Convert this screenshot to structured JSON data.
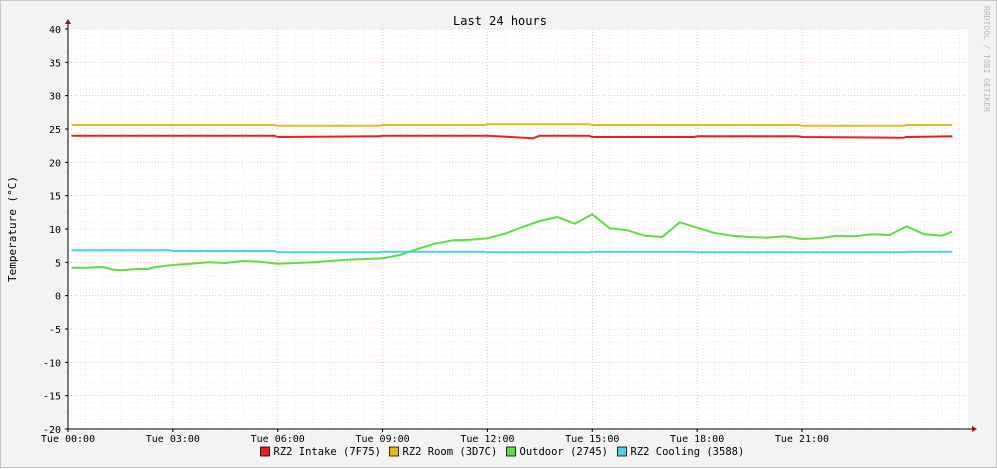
{
  "chart_data": {
    "type": "line",
    "title": "Last 24 hours",
    "ylabel": "Temperature (°C)",
    "watermark": "RRDTOOL / TOBI OETIKER",
    "ylim": [
      -20,
      40
    ],
    "xlim_hours": [
      0,
      25.75
    ],
    "yticks": [
      40,
      35,
      30,
      25,
      20,
      15,
      10,
      5,
      0,
      -5,
      -10,
      -15,
      -20
    ],
    "xticks": [
      {
        "hour": 0,
        "label": "Tue 00:00"
      },
      {
        "hour": 3,
        "label": "Tue 03:00"
      },
      {
        "hour": 6,
        "label": "Tue 06:00"
      },
      {
        "hour": 9,
        "label": "Tue 09:00"
      },
      {
        "hour": 12,
        "label": "Tue 12:00"
      },
      {
        "hour": 15,
        "label": "Tue 15:00"
      },
      {
        "hour": 18,
        "label": "Tue 18:00"
      },
      {
        "hour": 21,
        "label": "Tue 21:00"
      }
    ],
    "grid": true,
    "legend_position": "bottom",
    "colors": {
      "background": "#f3f3f3",
      "canvas": "#ffffff",
      "grid_major": "#e8a3a3",
      "grid_minor": "#d8d8d8",
      "axis": "#000000",
      "arrow": "#8b1a1a"
    },
    "series": [
      {
        "name": "RZ2 Intake (7F75)",
        "color": "#ee1d1d",
        "x": [
          0.1,
          2.9,
          3.0,
          5.9,
          6.0,
          8.9,
          9.0,
          11.9,
          12.0,
          13.3,
          13.5,
          14.9,
          15.0,
          17.9,
          18.0,
          20.9,
          21.0,
          23.9,
          24.0,
          25.3
        ],
        "y": [
          24.0,
          24.0,
          24.0,
          24.0,
          23.8,
          23.9,
          24.0,
          24.0,
          24.0,
          23.6,
          24.0,
          24.0,
          23.8,
          23.8,
          23.9,
          23.9,
          23.8,
          23.7,
          23.8,
          23.9
        ]
      },
      {
        "name": "RZ2 Room (3D7C)",
        "color": "#e8b719",
        "x": [
          0.1,
          2.9,
          3.0,
          5.9,
          6.0,
          8.9,
          9.0,
          11.9,
          12.0,
          14.9,
          15.0,
          17.9,
          18.0,
          20.9,
          21.0,
          23.9,
          24.0,
          25.3
        ],
        "y": [
          25.6,
          25.6,
          25.6,
          25.6,
          25.5,
          25.5,
          25.6,
          25.6,
          25.7,
          25.7,
          25.6,
          25.6,
          25.6,
          25.6,
          25.5,
          25.5,
          25.6,
          25.6
        ]
      },
      {
        "name": "Outdoor (2745)",
        "color": "#5bdf45",
        "x": [
          0.1,
          0.5,
          1.0,
          1.3,
          1.5,
          2.0,
          2.3,
          2.5,
          3.0,
          3.5,
          4.0,
          4.5,
          5.0,
          5.5,
          6.0,
          6.5,
          7.0,
          7.5,
          8.0,
          8.5,
          9.0,
          9.5,
          10.0,
          10.5,
          11.0,
          11.5,
          12.0,
          12.5,
          13.0,
          13.5,
          14.0,
          14.5,
          15.0,
          15.5,
          16.0,
          16.5,
          17.0,
          17.5,
          18.0,
          18.5,
          19.0,
          19.5,
          20.0,
          20.5,
          21.0,
          21.5,
          22.0,
          22.5,
          23.0,
          23.5,
          24.0,
          24.5,
          25.0,
          25.3
        ],
        "y": [
          4.2,
          4.2,
          4.3,
          3.9,
          3.8,
          4.0,
          4.0,
          4.3,
          4.6,
          4.8,
          5.0,
          4.9,
          5.2,
          5.1,
          4.8,
          4.9,
          5.0,
          5.2,
          5.4,
          5.5,
          5.6,
          6.1,
          7.0,
          7.8,
          8.3,
          8.4,
          8.6,
          9.3,
          10.3,
          11.2,
          11.8,
          10.8,
          12.2,
          10.1,
          9.8,
          9.0,
          8.8,
          11.0,
          10.2,
          9.4,
          9.0,
          8.8,
          8.7,
          8.9,
          8.5,
          8.6,
          9.0,
          8.9,
          9.2,
          9.1,
          10.4,
          9.2,
          9.0,
          9.6
        ]
      },
      {
        "name": "RZ2 Cooling (3588)",
        "color": "#4fd1e3",
        "x": [
          0.1,
          2.9,
          3.0,
          5.9,
          6.0,
          8.9,
          9.0,
          11.9,
          12.0,
          14.9,
          15.0,
          17.9,
          18.0,
          20.9,
          21.0,
          23.9,
          24.0,
          25.3
        ],
        "y": [
          6.8,
          6.8,
          6.7,
          6.7,
          6.5,
          6.5,
          6.6,
          6.6,
          6.5,
          6.5,
          6.6,
          6.6,
          6.5,
          6.5,
          6.5,
          6.5,
          6.6,
          6.6
        ]
      }
    ]
  }
}
